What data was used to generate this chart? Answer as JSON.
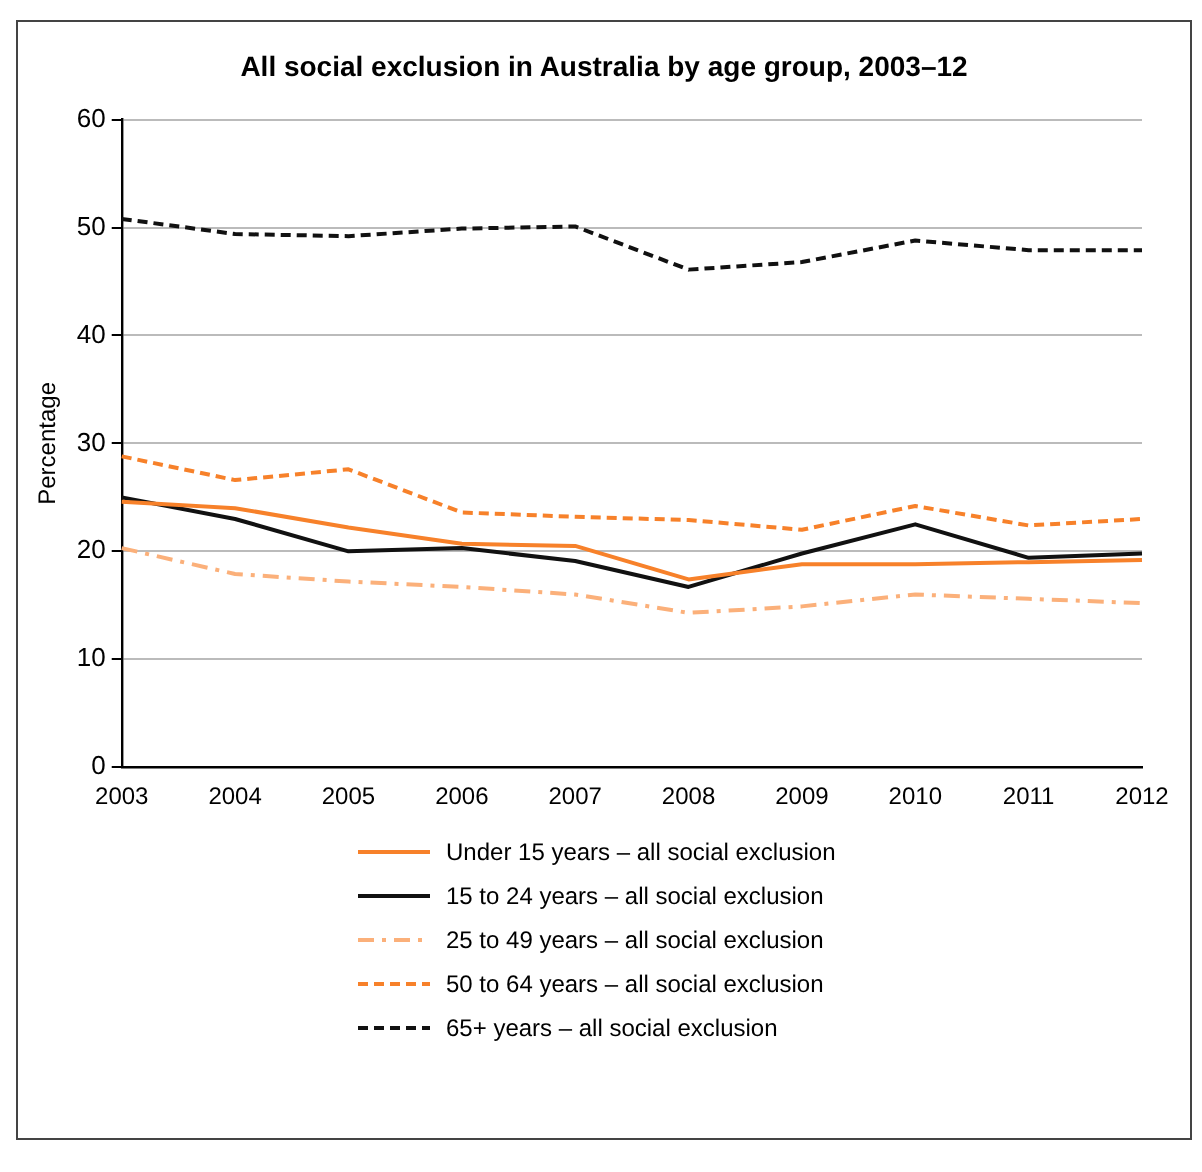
{
  "chart_data": {
    "type": "line",
    "title": "All social exclusion in Australia by age group, 2003–12",
    "ylabel": "Percentage",
    "categories": [
      "2003",
      "2004",
      "2005",
      "2006",
      "2007",
      "2008",
      "2009",
      "2010",
      "2011",
      "2012"
    ],
    "series": [
      {
        "name": "Under 15 years – all social exclusion",
        "color": "#f7812a",
        "line_style": "solid",
        "values": [
          24.6,
          24.0,
          22.2,
          20.7,
          20.5,
          17.4,
          18.8,
          18.8,
          19.0,
          19.2
        ]
      },
      {
        "name": "15 to 24 years – all social exclusion",
        "color": "#111111",
        "line_style": "solid",
        "values": [
          25.0,
          23.0,
          20.0,
          20.3,
          19.1,
          16.7,
          19.8,
          22.5,
          19.4,
          19.8
        ]
      },
      {
        "name": "25 to 49 years – all social exclusion",
        "color": "#fbb07a",
        "line_style": "dashdot",
        "values": [
          20.3,
          17.9,
          17.2,
          16.7,
          16.0,
          14.3,
          14.9,
          16.0,
          15.6,
          15.2
        ]
      },
      {
        "name": "50 to 64 years – all social exclusion",
        "color": "#f7812a",
        "line_style": "dashed",
        "values": [
          28.8,
          26.6,
          27.6,
          23.6,
          23.2,
          22.9,
          22.0,
          24.2,
          22.4,
          23.0
        ]
      },
      {
        "name": "65+ years – all social exclusion",
        "color": "#111111",
        "line_style": "dashed",
        "values": [
          50.8,
          49.4,
          49.2,
          49.9,
          50.1,
          46.1,
          46.8,
          48.8,
          47.9,
          47.9
        ]
      }
    ],
    "ylim": [
      0,
      60
    ],
    "yticks": [
      0,
      10,
      20,
      30,
      40,
      50,
      60
    ],
    "grid": "y",
    "legend": "bottom",
    "marker": "none"
  }
}
